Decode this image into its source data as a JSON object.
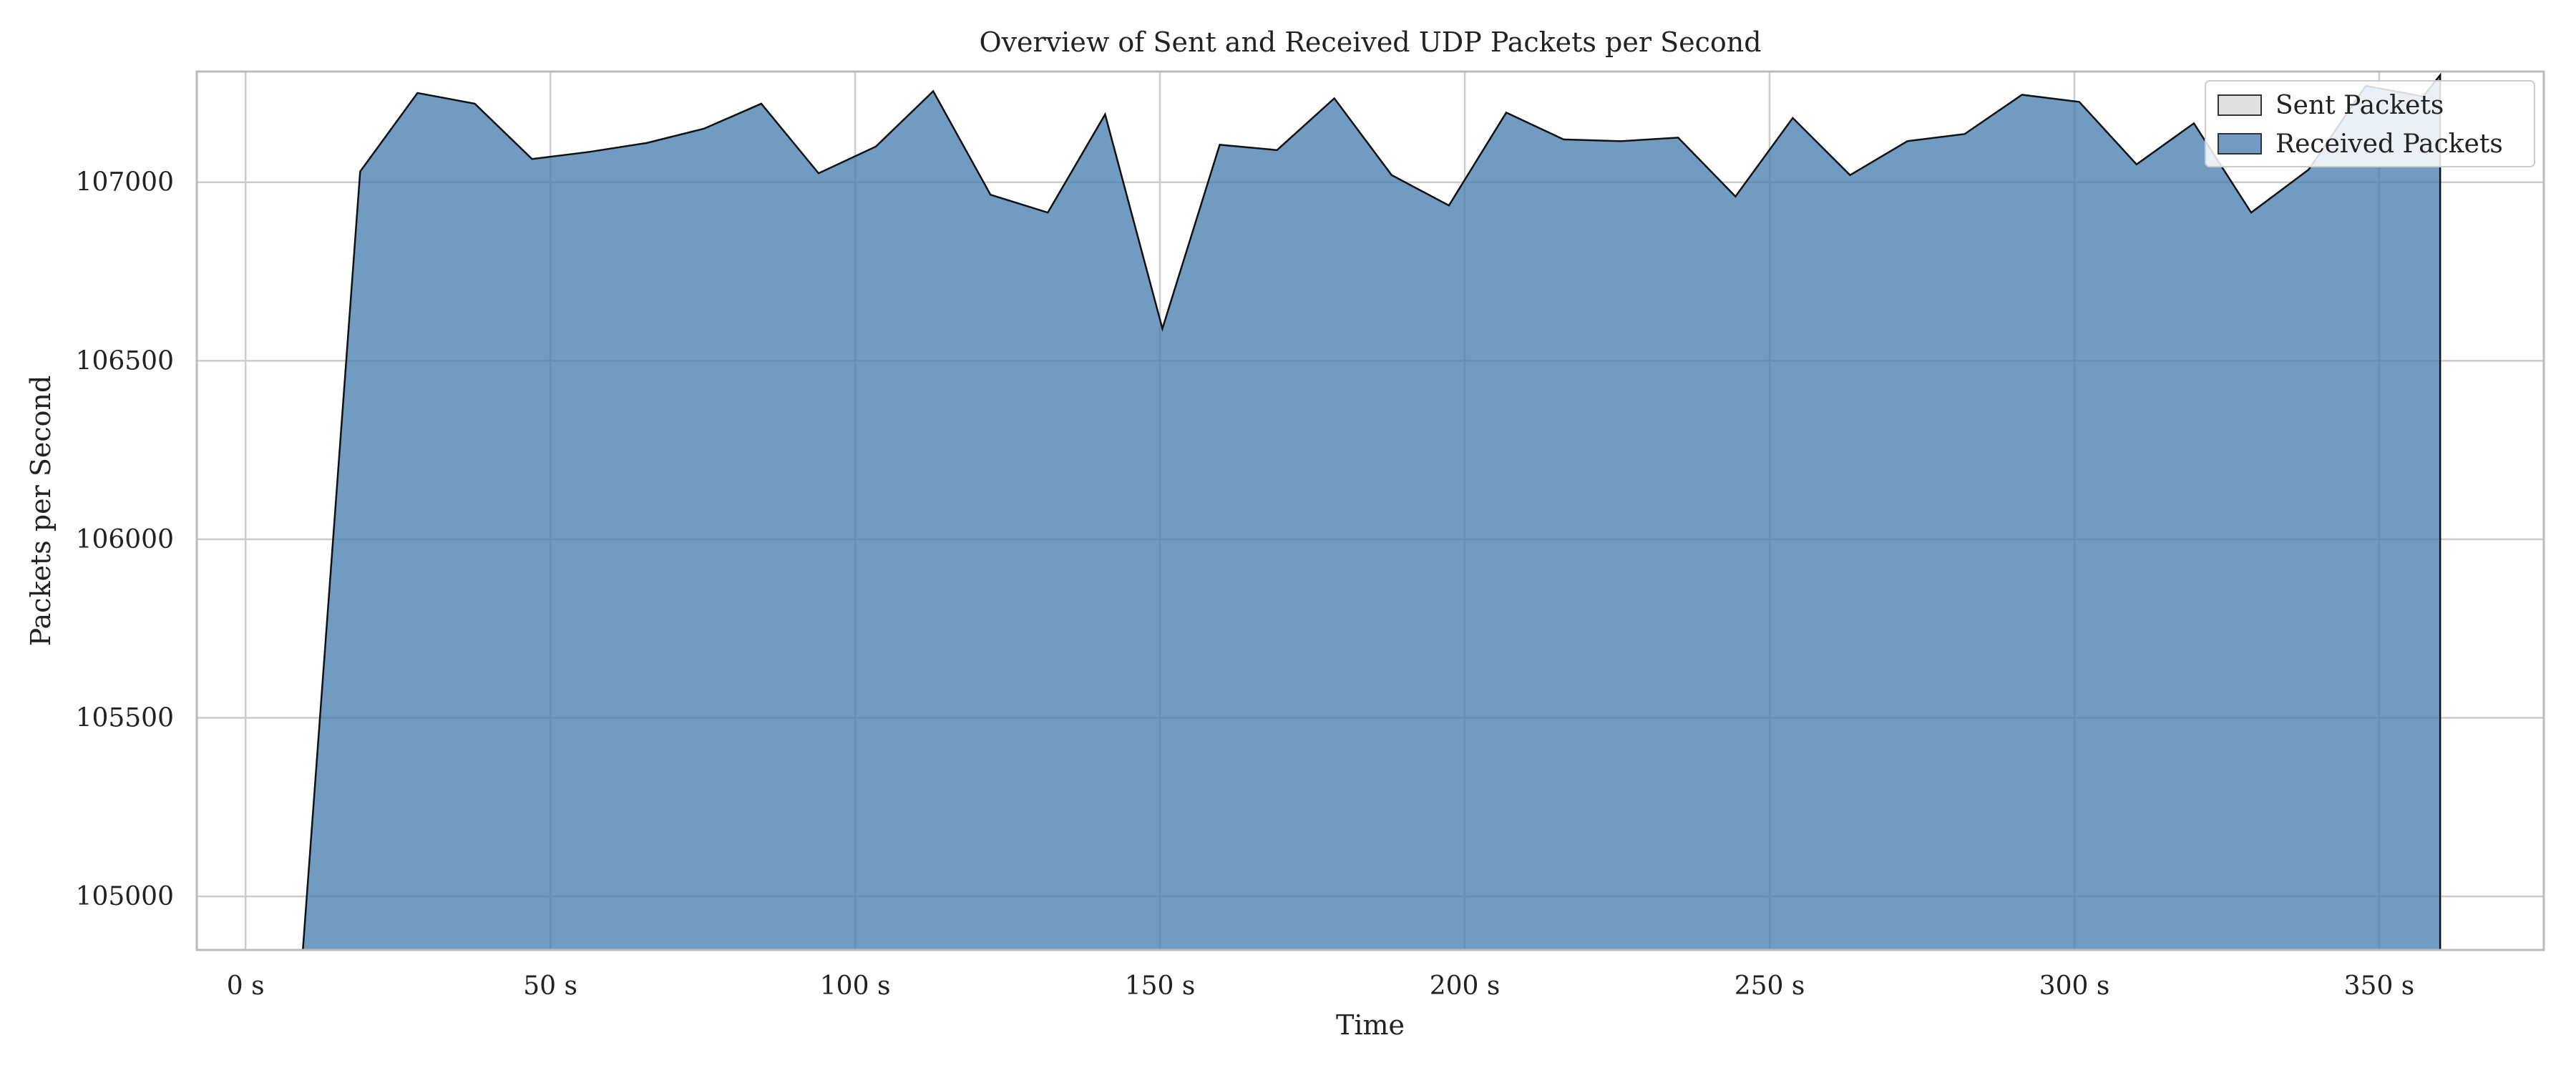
{
  "chart_data": {
    "type": "area",
    "title": "Overview of Sent and Received UDP Packets per Second",
    "xlabel": "Time",
    "ylabel": "Packets per Second",
    "xlim": [
      -8,
      377
    ],
    "ylim": [
      104850,
      107310
    ],
    "x_ticks": [
      0,
      50,
      100,
      150,
      200,
      250,
      300,
      350
    ],
    "x_tick_labels": [
      "0 s",
      "50 s",
      "100 s",
      "150 s",
      "200 s",
      "250 s",
      "300 s",
      "350 s"
    ],
    "y_ticks": [
      105000,
      105500,
      106000,
      106500,
      107000
    ],
    "y_tick_labels": [
      "105000",
      "105500",
      "106000",
      "106500",
      "107000"
    ],
    "grid": true,
    "legend_position": "top-right",
    "series": [
      {
        "name": "Sent Packets",
        "color": "#e0e0e0",
        "x": [],
        "values": []
      },
      {
        "name": "Received Packets",
        "color": "#4a7fb0",
        "x": [
          0,
          9.4,
          18.8,
          28.2,
          37.6,
          47.0,
          56.4,
          65.8,
          75.2,
          84.6,
          94.0,
          103.4,
          112.8,
          122.2,
          131.6,
          141.0,
          150.4,
          159.8,
          169.2,
          178.6,
          188.0,
          197.4,
          206.8,
          216.2,
          225.6,
          235.0,
          244.4,
          253.8,
          263.2,
          272.6,
          282.0,
          291.4,
          300.8,
          310.2,
          319.6,
          329.0,
          338.4,
          347.8,
          357.2,
          360
        ],
        "values": [
          104550,
          104850,
          107030,
          107250,
          107220,
          107065,
          107085,
          107110,
          107150,
          107220,
          107025,
          107100,
          107255,
          106965,
          106915,
          107190,
          106590,
          107105,
          107090,
          107235,
          107020,
          106935,
          107195,
          107120,
          107115,
          107125,
          106960,
          107180,
          107020,
          107115,
          107135,
          107245,
          107225,
          107050,
          107165,
          106915,
          107035,
          107270,
          107240,
          107300
        ]
      }
    ]
  }
}
